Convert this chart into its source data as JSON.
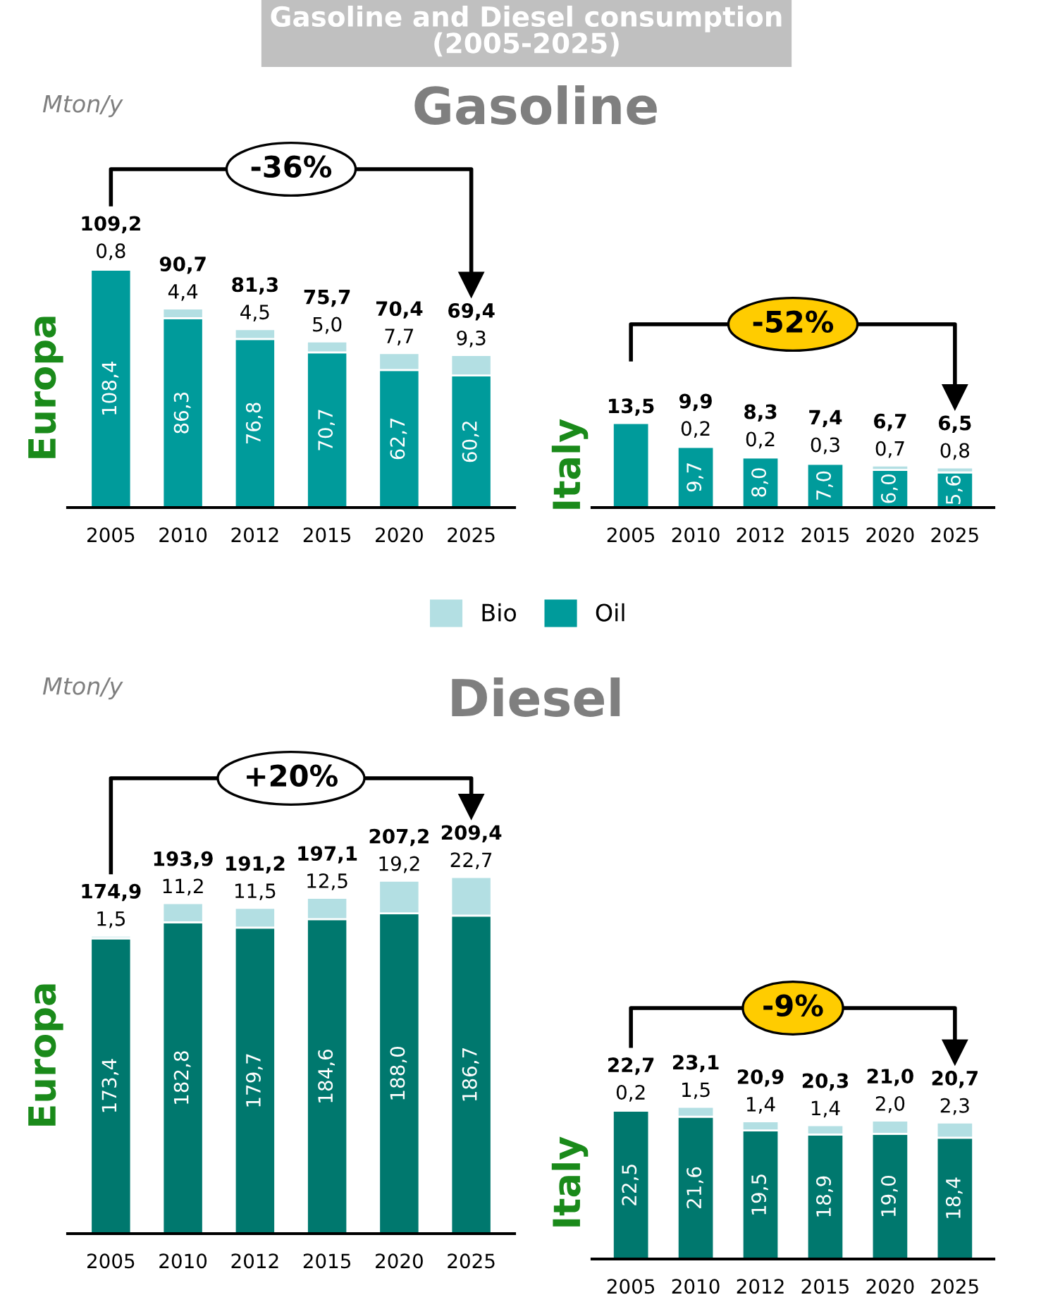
{
  "chart_data": [
    {
      "type": "bar",
      "title": "Gasoline and Diesel consumption\n(2005-2025)",
      "subtitle": "Gasoline",
      "ylabel": "Europa",
      "annotations": [
        "Mton/y",
        "-36%"
      ],
      "stacked": true,
      "categories": [
        "2005",
        "2010",
        "2012",
        "2015",
        "2020",
        "2025"
      ],
      "series": [
        {
          "color": "#009b9b",
          "values": [
            108.4,
            86.3,
            76.8,
            70.7,
            62.7,
            60.2
          ],
          "value_labels": [
            "108,4",
            "86,3",
            "76,8",
            "70,7",
            "62,7",
            "60,2"
          ]
        },
        {
          "color": "#b3dfe3",
          "values": [
            0.8,
            4.4,
            4.5,
            5.0,
            7.7,
            9.3
          ],
          "value_labels": [
            "0,8",
            "4,4",
            "4,5",
            "5,0",
            "7,7",
            "9,3"
          ]
        }
      ],
      "totals": [
        "109,2",
        "90,7",
        "81,3",
        "75,7",
        "70,4",
        "69,4"
      ]
    },
    {
      "type": "bar",
      "ylabel": "Italy",
      "annotations": [
        "-52%"
      ],
      "stacked": true,
      "legend": "bottom",
      "categories": [
        "2005",
        "2010",
        "2012",
        "2015",
        "2020",
        "2025"
      ],
      "series": [
        {
          "name": "Oil",
          "color": "#009b9b",
          "values": [
            13.5,
            9.7,
            8.0,
            7.0,
            6.0,
            5.6
          ],
          "value_labels": [
            null,
            "9,7",
            "8,0",
            "7,0",
            "6,0",
            "5,6"
          ]
        },
        {
          "name": "Bio",
          "color": "#b3dfe3",
          "values": [
            0,
            0.2,
            0.2,
            0.3,
            0.7,
            0.8
          ],
          "value_labels": [
            null,
            "0,2",
            "0,2",
            "0,3",
            "0,7",
            "0,8"
          ]
        }
      ],
      "totals": [
        "13,5",
        "9,9",
        "8,3",
        "7,4",
        "6,7",
        "6,5"
      ]
    },
    {
      "type": "bar",
      "subtitle": "Diesel",
      "ylabel": "Europa",
      "annotations": [
        "Mton/y",
        "+20%"
      ],
      "stacked": true,
      "categories": [
        "2005",
        "2010",
        "2012",
        "2015",
        "2020",
        "2025"
      ],
      "series": [
        {
          "color": "#00786e",
          "values": [
            173.4,
            182.8,
            179.7,
            184.6,
            188.0,
            186.7
          ],
          "value_labels": [
            "173,4",
            "182,8",
            "179,7",
            "184,6",
            "188,0",
            "186,7"
          ]
        },
        {
          "color": "#b3dfe3",
          "values": [
            1.5,
            11.2,
            11.5,
            12.5,
            19.2,
            22.7
          ],
          "value_labels": [
            "1,5",
            "11,2",
            "11,5",
            "12,5",
            "19,2",
            "22,7"
          ]
        }
      ],
      "totals": [
        "174,9",
        "193,9",
        "191,2",
        "197,1",
        "207,2",
        "209,4"
      ]
    },
    {
      "type": "bar",
      "ylabel": "Italy",
      "annotations": [
        "-9%"
      ],
      "stacked": true,
      "categories": [
        "2005",
        "2010",
        "2012",
        "2015",
        "2020",
        "2025"
      ],
      "series": [
        {
          "color": "#00786e",
          "values": [
            22.5,
            21.6,
            19.5,
            18.9,
            19.0,
            18.4
          ],
          "value_labels": [
            "22,5",
            "21,6",
            "19,5",
            "18,9",
            "19,0",
            "18,4"
          ]
        },
        {
          "color": "#b3dfe3",
          "values": [
            0.2,
            1.5,
            1.4,
            1.4,
            2.0,
            2.3
          ],
          "value_labels": [
            "0,2",
            "1,5",
            "1,4",
            "1,4",
            "2,0",
            "2,3"
          ]
        }
      ],
      "totals": [
        "22,7",
        "23,1",
        "20,9",
        "20,3",
        "21,0",
        "20,7"
      ]
    }
  ]
}
